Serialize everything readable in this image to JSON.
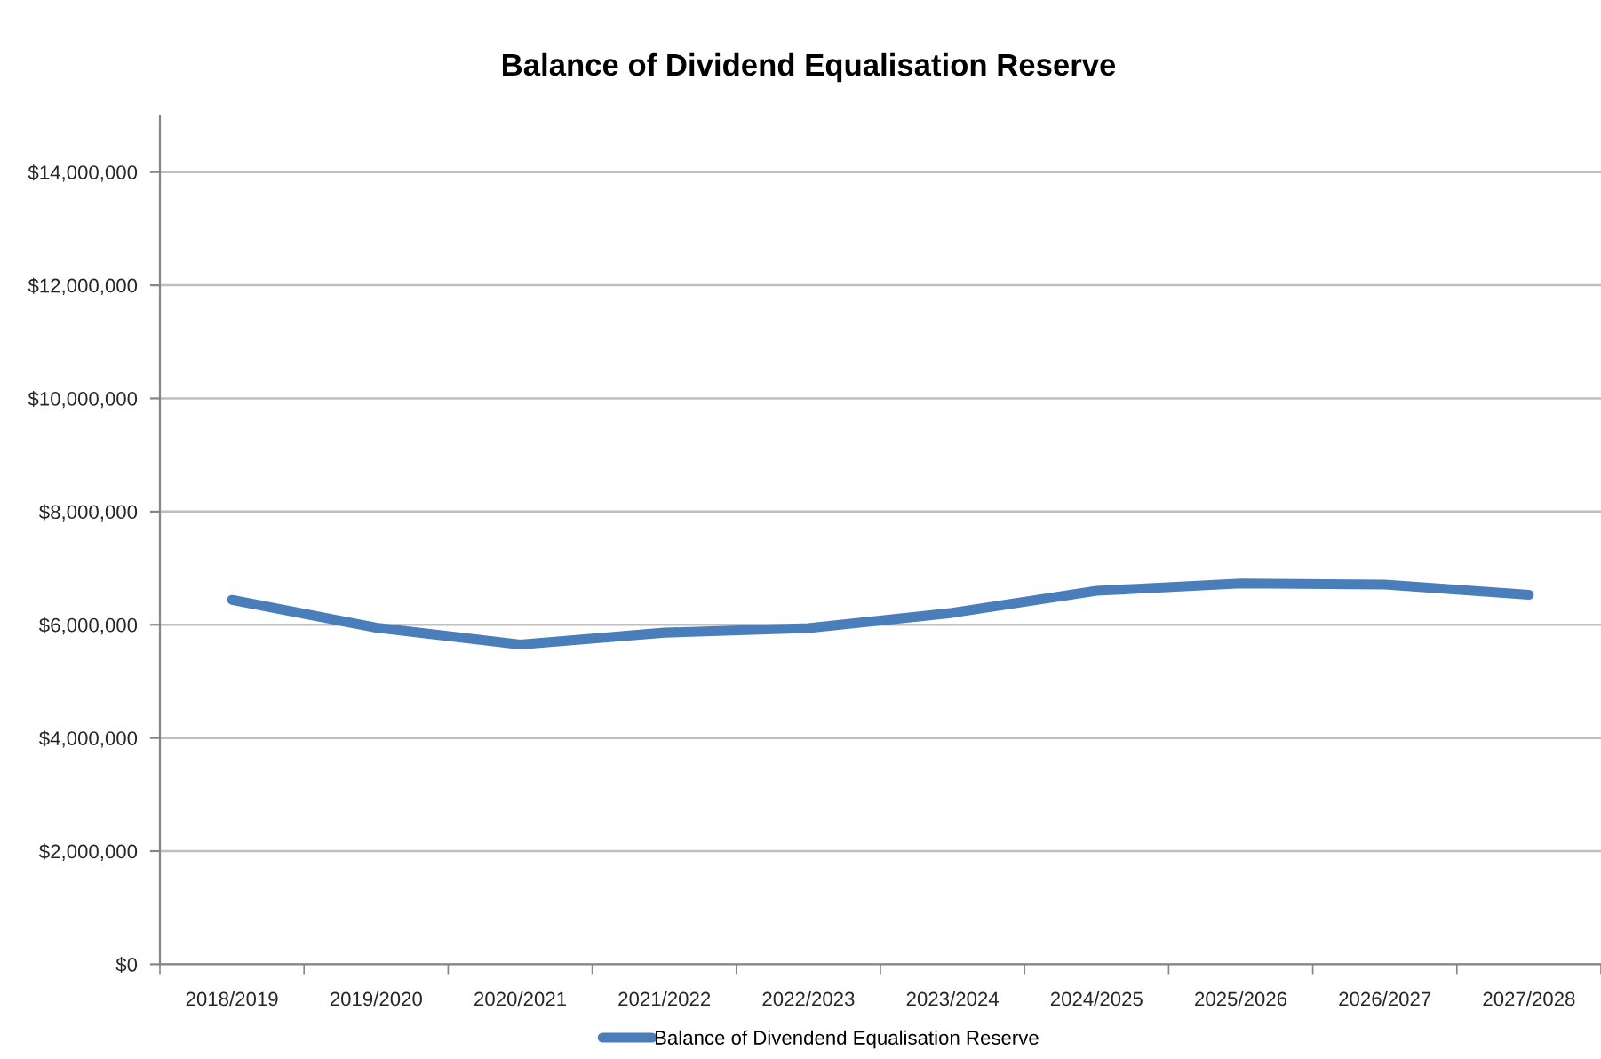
{
  "chart_data": {
    "type": "line",
    "title": "Balance of Dividend Equalisation Reserve",
    "categories": [
      "2018/2019",
      "2019/2020",
      "2020/2021",
      "2021/2022",
      "2022/2023",
      "2023/2024",
      "2024/2025",
      "2025/2026",
      "2026/2027",
      "2027/2028"
    ],
    "series": [
      {
        "name": "Balance of Divendend Equalisation Reserve",
        "color": "#4a7ebb",
        "values": [
          6440000,
          5950000,
          5650000,
          5860000,
          5940000,
          6210000,
          6600000,
          6730000,
          6710000,
          6530000
        ]
      }
    ],
    "ylim": [
      0,
      15000000
    ],
    "yticks": [
      {
        "value": 0,
        "label": "$0"
      },
      {
        "value": 2000000,
        "label": "$2,000,000"
      },
      {
        "value": 4000000,
        "label": "$4,000,000"
      },
      {
        "value": 6000000,
        "label": "$6,000,000"
      },
      {
        "value": 8000000,
        "label": "$8,000,000"
      },
      {
        "value": 10000000,
        "label": "$10,000,000"
      },
      {
        "value": 12000000,
        "label": "$12,000,000"
      },
      {
        "value": 14000000,
        "label": "$14,000,000"
      }
    ],
    "grid": "y",
    "legend": "bottom",
    "line_style": "solid"
  }
}
